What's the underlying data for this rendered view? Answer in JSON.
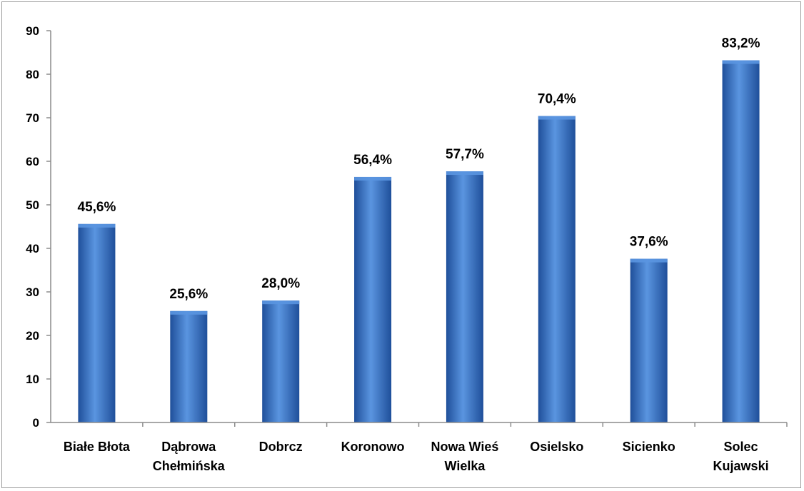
{
  "chart_data": {
    "type": "bar",
    "categories": [
      [
        "Białe  Błota"
      ],
      [
        "Dąbrowa",
        "Chełmińska"
      ],
      [
        "Dobrcz"
      ],
      [
        "Koronowo"
      ],
      [
        "Nowa Wieś",
        "Wielka"
      ],
      [
        "Osielsko"
      ],
      [
        "Sicienko"
      ],
      [
        "Solec",
        "Kujawski"
      ]
    ],
    "values": [
      45.6,
      25.6,
      28.0,
      56.4,
      57.7,
      70.4,
      37.6,
      83.2
    ],
    "data_labels": [
      "45,6%",
      "25,6%",
      "28,0%",
      "56,4%",
      "57,7%",
      "70,4%",
      "37,6%",
      "83,2%"
    ],
    "y_ticks": [
      "0",
      "10",
      "20",
      "30",
      "40",
      "50",
      "60",
      "70",
      "80",
      "90"
    ],
    "ylim": [
      0,
      90
    ],
    "grid": false,
    "colors": {
      "bar_dark": "#1f4f9a",
      "bar_mid": "#3d78cc",
      "bar_light": "#5a95e0",
      "axis": "#8c8c8c"
    }
  }
}
